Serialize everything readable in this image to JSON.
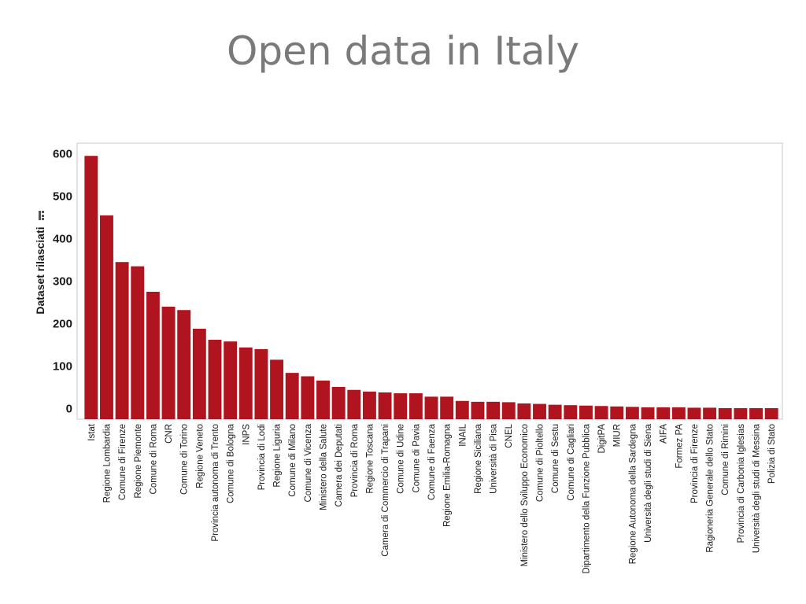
{
  "slide": {
    "title": "Open data in Italy"
  },
  "chart_data": {
    "type": "bar",
    "title": "",
    "xlabel": "",
    "ylabel": "Dataset rilasciati",
    "ylim": [
      -25,
      625
    ],
    "yticks": [
      0,
      100,
      200,
      300,
      400,
      500,
      600
    ],
    "grid": false,
    "bar_color": "#b0141e",
    "categories": [
      "Istat",
      "Regione Lombardia",
      "Comune di Firenze",
      "Regione Piemonte",
      "Comune di Roma",
      "CNR",
      "Comune di Torino",
      "Regione Veneto",
      "Provincia autonoma di Trento",
      "Comune di Bologna",
      "INPS",
      "Provincia di Lodi",
      "Regione Liguria",
      "Comune di Milano",
      "Comune di Vicenza",
      "Ministero della Salute",
      "Camera dei Deputati",
      "Provincia di Roma",
      "Regione Toscana",
      "Camera di Commercio di Trapani",
      "Comune di Udine",
      "Comune di Pavia",
      "Comune di Faenza",
      "Regione Emilia-Romagna",
      "INAIL",
      "Regione Siciliana",
      "Università di Pisa",
      "CNEL",
      "Ministero dello Sviluppo Economico",
      "Comune di Pioltello",
      "Comune di Sestu",
      "Comune di Cagliari",
      "Dipartimento della Funzione Pubblica",
      "DigitPA",
      "MIUR",
      "Regione Autonoma della Sardegna",
      "Università degli studi di Siena",
      "AIFA",
      "Formez PA",
      "Provincia di Firenze",
      "Ragioneria Generale dello Stato",
      "Comune di Rimini",
      "Provincia di Carbonia Iglesias",
      "Università degli studi di Messina",
      "Polizia di Stato"
    ],
    "values": [
      595,
      455,
      345,
      335,
      275,
      240,
      232,
      188,
      162,
      158,
      144,
      140,
      115,
      84,
      76,
      66,
      51,
      44,
      40,
      38,
      36,
      36,
      28,
      28,
      18,
      16,
      16,
      15,
      12,
      11,
      9,
      8,
      7,
      6,
      5,
      4,
      3,
      3,
      3,
      2,
      2,
      1,
      1,
      1,
      1
    ]
  }
}
